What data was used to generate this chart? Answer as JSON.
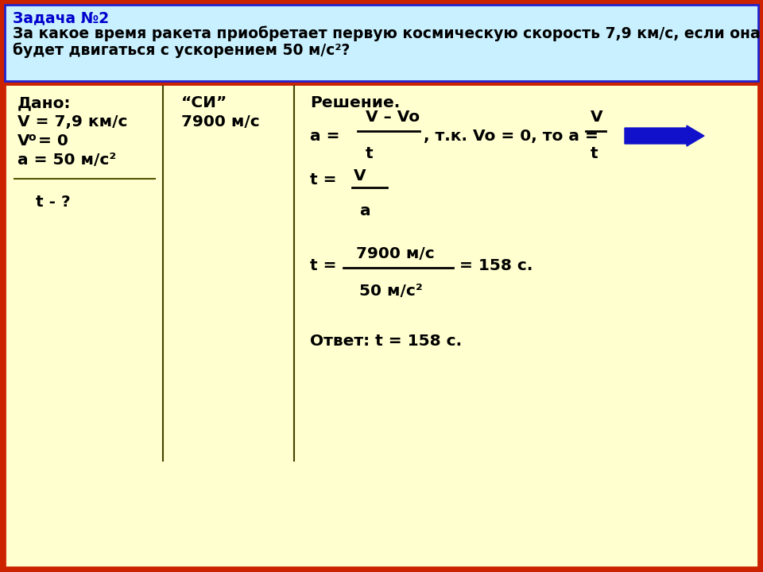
{
  "title_line1": "Задача №2",
  "title_line2": "За какое время ракета приобретает первую космическую скорость 7,9 км/с, если она",
  "title_line3": "будет двигаться с ускорением 50 м/с²?",
  "header_bg": "#c8f0ff",
  "header_border": "#2222cc",
  "body_bg": "#ffffd0",
  "body_border": "#cc2200",
  "outer_bg": "#cc2200",
  "title_color": "#0000cc",
  "text_color": "#000000"
}
